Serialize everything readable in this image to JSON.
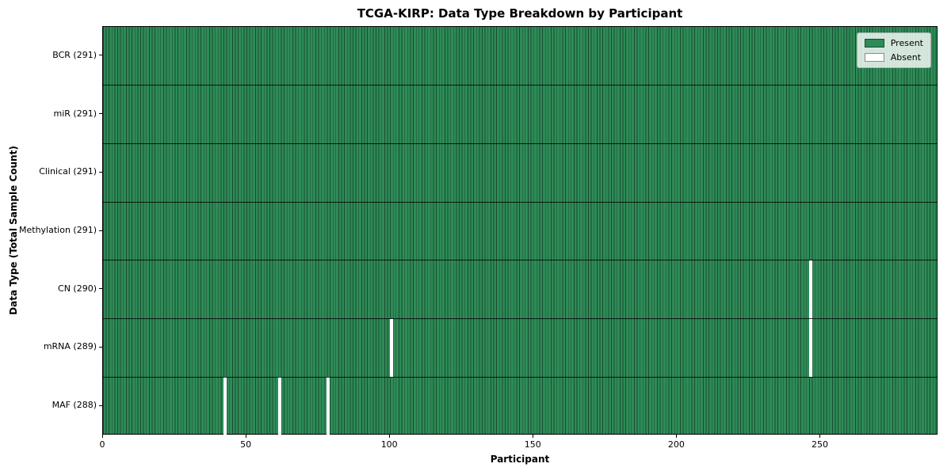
{
  "chart_data": {
    "type": "heatmap",
    "title": "TCGA-KIRP: Data Type Breakdown by Participant",
    "xlabel": "Participant",
    "ylabel": "Data Type (Total Sample Count)",
    "x_ticks": [
      0,
      50,
      100,
      150,
      200,
      250
    ],
    "xlim": [
      0,
      291
    ],
    "n_participants": 291,
    "grid": "horizontal row separators on, vertical per-participant cell edges",
    "rows": [
      {
        "label": "BCR (291)",
        "data_type": "BCR",
        "present_count": 291,
        "absent_participants": []
      },
      {
        "label": "miR (291)",
        "data_type": "miR",
        "present_count": 291,
        "absent_participants": []
      },
      {
        "label": "Clinical (291)",
        "data_type": "Clinical",
        "present_count": 291,
        "absent_participants": []
      },
      {
        "label": "Methylation (291)",
        "data_type": "Methylation",
        "present_count": 291,
        "absent_participants": []
      },
      {
        "label": "CN (290)",
        "data_type": "CN",
        "present_count": 290,
        "absent_participants": [
          246
        ]
      },
      {
        "label": "mRNA (289)",
        "data_type": "mRNA",
        "present_count": 289,
        "absent_participants": [
          100,
          246
        ]
      },
      {
        "label": "MAF (288)",
        "data_type": "MAF",
        "present_count": 288,
        "absent_participants": [
          42,
          61,
          78
        ]
      }
    ],
    "legend": {
      "position": "upper right",
      "items": [
        {
          "label": "Present",
          "color": "#2e8b57"
        },
        {
          "label": "Absent",
          "color": "#ffffff"
        }
      ]
    },
    "colors": {
      "present": "#2e8b57",
      "absent": "#ffffff",
      "bar_edge": "rgba(0,0,0,0.45)"
    }
  }
}
